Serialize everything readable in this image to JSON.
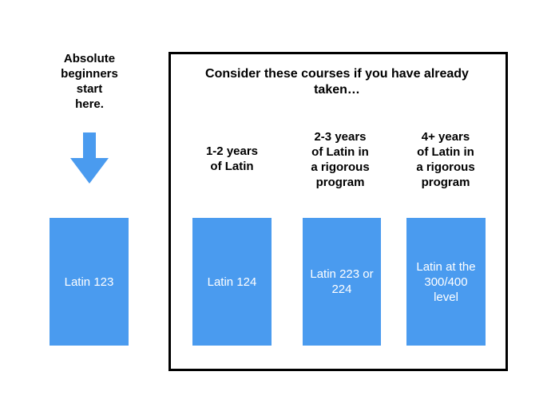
{
  "intro": {
    "beginners_text": "Absolute\nbeginners\nstart\nhere.",
    "arrow_icon": "down-arrow-icon",
    "arrow_color": "#4a9bef"
  },
  "group": {
    "heading": "Consider these courses if you have already\ntaken…",
    "levels": [
      {
        "label": "1-2 years\nof Latin"
      },
      {
        "label": "2-3 years\nof Latin in\na rigorous\nprogram"
      },
      {
        "label": "4+ years\nof Latin in\na rigorous\nprogram"
      }
    ]
  },
  "courses": [
    {
      "name": "Latin 123"
    },
    {
      "name": "Latin 124"
    },
    {
      "name": "Latin 223 or\n224"
    },
    {
      "name": "Latin at the\n300/400 level"
    }
  ],
  "colors": {
    "box_fill": "#4a9bef",
    "box_text": "#ffffff",
    "frame_border": "#000000"
  }
}
